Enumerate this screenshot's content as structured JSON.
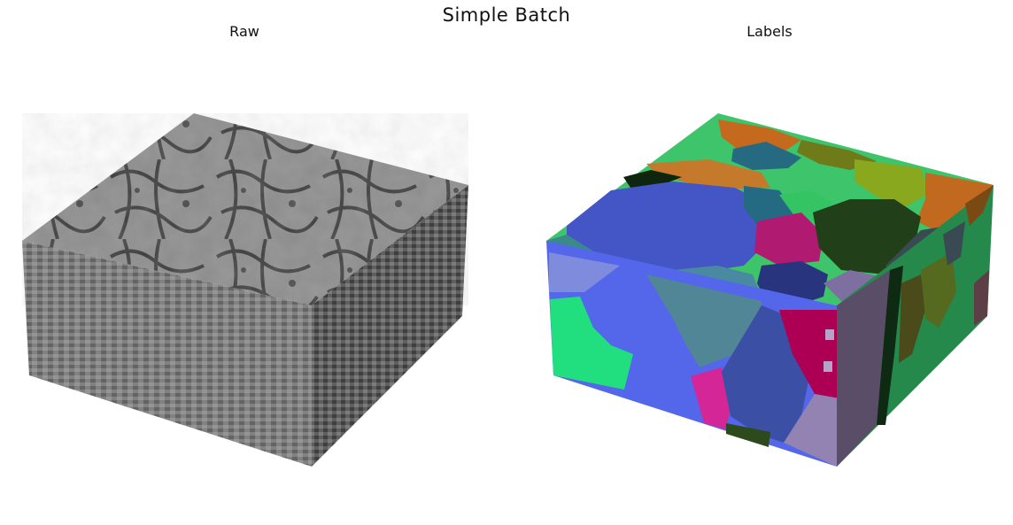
{
  "figure": {
    "title": "Simple Batch",
    "panels": [
      {
        "id": "raw",
        "title": "Raw"
      },
      {
        "id": "labels",
        "title": "Labels"
      }
    ]
  }
}
